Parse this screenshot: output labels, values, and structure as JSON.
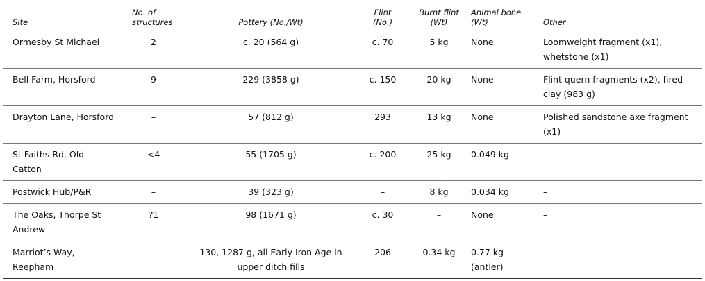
{
  "table": {
    "header": [
      "Site",
      "No. of\nstructures",
      "Pottery (No./Wt)",
      "Flint\n(No.)",
      "Burnt flint\n(Wt)",
      "Animal bone\n(Wt)",
      "Other"
    ],
    "rows": [
      [
        "Ormesby St Michael",
        "2",
        "c. 20 (564 g)",
        "c. 70",
        "5 kg",
        "None",
        "Loomweight fragment (x1), whetstone (x1)"
      ],
      [
        "Bell Farm, Horsford",
        "9",
        "229 (3858 g)",
        "c. 150",
        "20 kg",
        "None",
        "Flint quern fragments (x2), fired clay (983 g)"
      ],
      [
        "Drayton Lane, Horsford",
        "–",
        "57 (812 g)",
        "293",
        "13 kg",
        "None",
        "Polished sandstone axe fragment (x1)"
      ],
      [
        "St Faiths Rd, Old Catton",
        "<4",
        "55 (1705 g)",
        "c. 200",
        "25 kg",
        "0.049 kg",
        "–"
      ],
      [
        "Postwick Hub/P&R",
        "–",
        "39 (323 g)",
        "–",
        "8 kg",
        "0.034 kg",
        "–"
      ],
      [
        "The Oaks, Thorpe St Andrew",
        "?1",
        "98 (1671 g)",
        "c. 30",
        "–",
        "None",
        "–"
      ],
      [
        "Marriot’s Way, Reepham",
        "–",
        "130, 1287 g, all Early Iron Age in upper ditch fills",
        "206",
        "0.34 kg",
        "0.77 kg (antler)",
        "–"
      ]
    ]
  }
}
